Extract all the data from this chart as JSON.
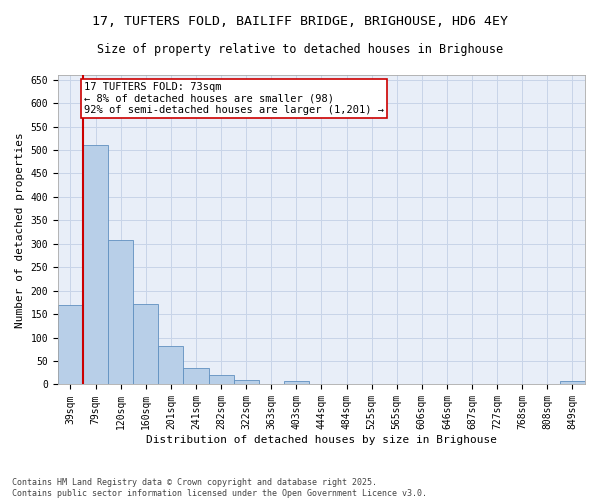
{
  "title_line1": "17, TUFTERS FOLD, BAILIFF BRIDGE, BRIGHOUSE, HD6 4EY",
  "title_line2": "Size of property relative to detached houses in Brighouse",
  "xlabel": "Distribution of detached houses by size in Brighouse",
  "ylabel": "Number of detached properties",
  "categories": [
    "39sqm",
    "79sqm",
    "120sqm",
    "160sqm",
    "201sqm",
    "241sqm",
    "282sqm",
    "322sqm",
    "363sqm",
    "403sqm",
    "444sqm",
    "484sqm",
    "525sqm",
    "565sqm",
    "606sqm",
    "646sqm",
    "687sqm",
    "727sqm",
    "768sqm",
    "808sqm",
    "849sqm"
  ],
  "values": [
    170,
    510,
    308,
    172,
    82,
    35,
    21,
    9,
    0,
    8,
    0,
    0,
    0,
    0,
    0,
    0,
    0,
    0,
    0,
    0,
    7
  ],
  "bar_color": "#b8cfe8",
  "bar_edge_color": "#6090c0",
  "vline_color": "#cc0000",
  "annotation_text": "17 TUFTERS FOLD: 73sqm\n← 8% of detached houses are smaller (98)\n92% of semi-detached houses are larger (1,201) →",
  "annotation_box_color": "#ffffff",
  "annotation_box_edge": "#cc0000",
  "ylim": [
    0,
    660
  ],
  "yticks": [
    0,
    50,
    100,
    150,
    200,
    250,
    300,
    350,
    400,
    450,
    500,
    550,
    600,
    650
  ],
  "grid_color": "#c8d4e8",
  "background_color": "#e8eef8",
  "footnote": "Contains HM Land Registry data © Crown copyright and database right 2025.\nContains public sector information licensed under the Open Government Licence v3.0.",
  "title_fontsize": 9.5,
  "subtitle_fontsize": 8.5,
  "label_fontsize": 8,
  "tick_fontsize": 7,
  "annot_fontsize": 7.5,
  "footnote_fontsize": 6
}
